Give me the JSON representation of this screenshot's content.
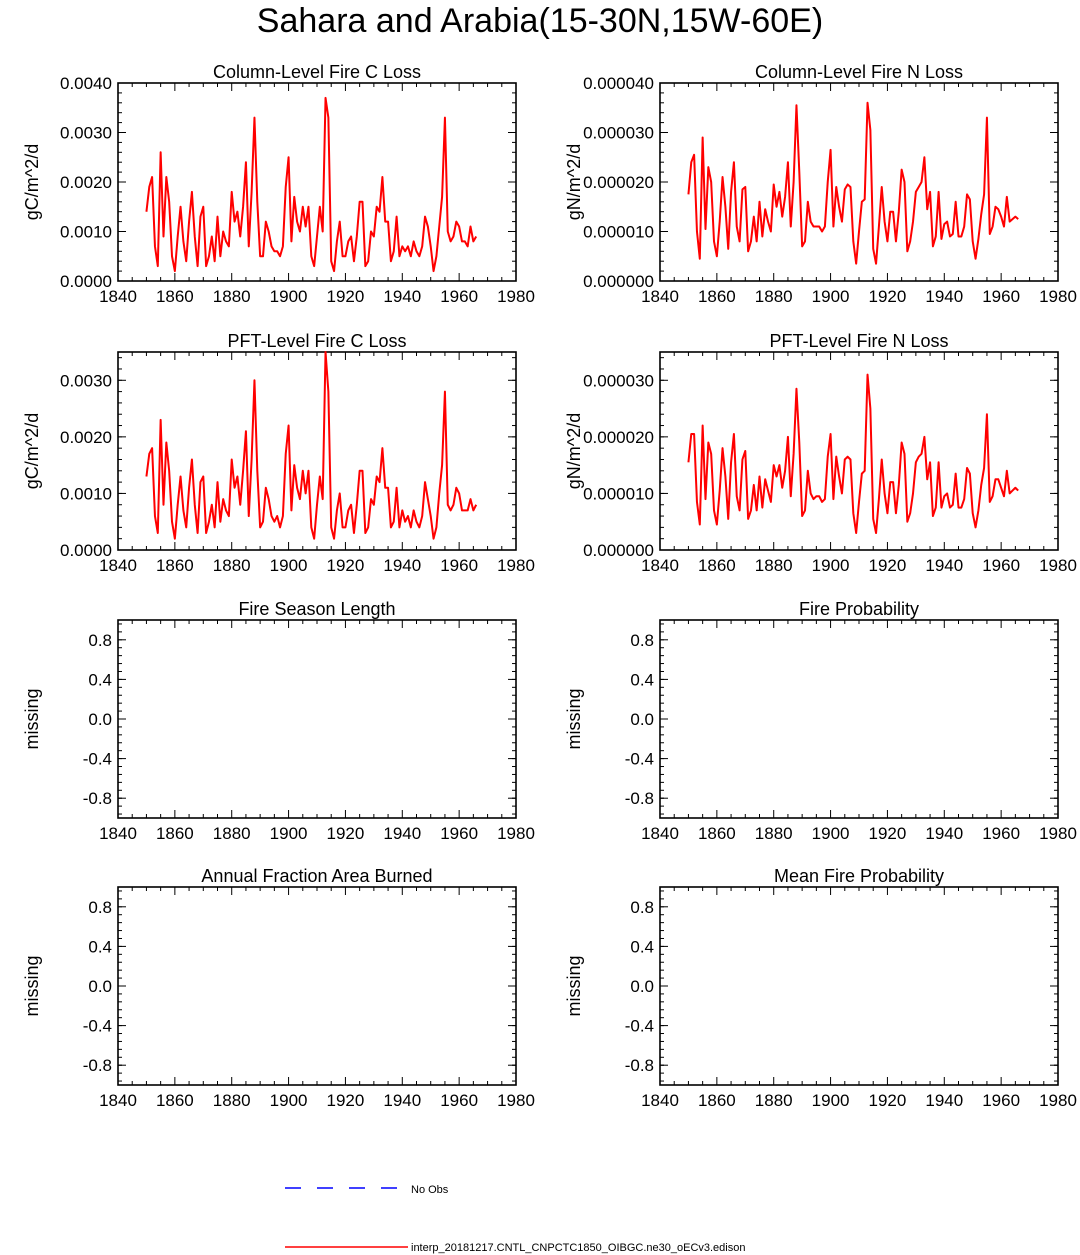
{
  "title": "Sahara and Arabia(15-30N,15W-60E)",
  "colors": {
    "model_line": "#ff0000",
    "obs_line": "#0000ff",
    "axis": "#000000"
  },
  "legend": {
    "obs_label": "No Obs",
    "model_label": "interp_20181217.CNTL_CNPCTC1850_OIBGC.ne30_oECv3.edison"
  },
  "chart_data": [
    {
      "type": "line",
      "title": "Column-Level Fire C Loss",
      "ylabel": "gC/m^2/d",
      "xlim": [
        1840,
        1980
      ],
      "ylim": [
        0,
        0.004
      ],
      "xticks": [
        1840,
        1860,
        1880,
        1900,
        1920,
        1940,
        1960,
        1980
      ],
      "yticks": [
        0,
        0.001,
        0.002,
        0.003,
        0.004
      ],
      "ytick_labels": [
        "0.0000",
        "0.0010",
        "0.0020",
        "0.0030",
        "0.0040"
      ],
      "series": [
        {
          "name": "interp_20181217.CNTL_CNPCTC1850_OIBGC.ne30_oECv3.edison",
          "x_start": 1850,
          "values": [
            0.0014,
            0.0019,
            0.0021,
            0.0007,
            0.0003,
            0.0026,
            0.0009,
            0.0021,
            0.0016,
            0.0005,
            0.0002,
            0.0009,
            0.0015,
            0.0008,
            0.0004,
            0.0012,
            0.0018,
            0.0009,
            0.0003,
            0.0013,
            0.0015,
            0.0003,
            0.0005,
            0.0009,
            0.0004,
            0.0013,
            0.0005,
            0.001,
            0.0008,
            0.0007,
            0.0018,
            0.0012,
            0.0014,
            0.0009,
            0.0015,
            0.0024,
            0.0007,
            0.0018,
            0.0033,
            0.0016,
            0.0005,
            0.0005,
            0.0012,
            0.001,
            0.0007,
            0.0006,
            0.0006,
            0.0005,
            0.0007,
            0.0019,
            0.0025,
            0.0008,
            0.0017,
            0.0012,
            0.001,
            0.0015,
            0.0011,
            0.0015,
            0.0005,
            0.0003,
            0.0009,
            0.0015,
            0.001,
            0.0037,
            0.0033,
            0.0004,
            0.0002,
            0.0008,
            0.0012,
            0.0005,
            0.0005,
            0.0008,
            0.0009,
            0.0004,
            0.0009,
            0.0016,
            0.0016,
            0.0003,
            0.0004,
            0.001,
            0.0009,
            0.0015,
            0.0014,
            0.0021,
            0.0012,
            0.0012,
            0.0004,
            0.0006,
            0.0013,
            0.0005,
            0.0007,
            0.0006,
            0.0007,
            0.0005,
            0.0008,
            0.0006,
            0.0005,
            0.0007,
            0.0013,
            0.0011,
            0.0007,
            0.0002,
            0.0005,
            0.0011,
            0.0017,
            0.0033,
            0.001,
            0.0008,
            0.0009,
            0.0012,
            0.0011,
            0.0008,
            0.0008,
            0.0007,
            0.0011,
            0.0008,
            0.0009
          ]
        }
      ]
    },
    {
      "type": "line",
      "title": "Column-Level Fire N Loss",
      "ylabel": "gN/m^2/d",
      "xlim": [
        1840,
        1980
      ],
      "ylim": [
        0,
        4e-05
      ],
      "xticks": [
        1840,
        1860,
        1880,
        1900,
        1920,
        1940,
        1960,
        1980
      ],
      "yticks": [
        0,
        1e-05,
        2e-05,
        3e-05,
        4e-05
      ],
      "ytick_labels": [
        "0.000000",
        "0.000010",
        "0.000020",
        "0.000030",
        "0.000040"
      ],
      "series": [
        {
          "name": "interp_20181217.CNTL_CNPCTC1850_OIBGC.ne30_oECv3.edison",
          "x_start": 1850,
          "values": [
            1.75e-05,
            2.4e-05,
            2.55e-05,
            1e-05,
            4.5e-06,
            2.9e-05,
            1.05e-05,
            2.3e-05,
            2e-05,
            8e-06,
            5e-06,
            1.2e-05,
            2.1e-05,
            1.5e-05,
            6.5e-06,
            1.8e-05,
            2.4e-05,
            1.1e-05,
            8e-06,
            1.85e-05,
            1.9e-05,
            6e-06,
            8e-06,
            1.3e-05,
            8e-06,
            1.6e-05,
            9e-06,
            1.45e-05,
            1.2e-05,
            1e-05,
            1.95e-05,
            1.5e-05,
            1.8e-05,
            1.3e-05,
            1.7e-05,
            2.4e-05,
            1.1e-05,
            2e-05,
            3.55e-05,
            2.2e-05,
            7e-06,
            8e-06,
            1.6e-05,
            1.2e-05,
            1.1e-05,
            1.1e-05,
            1.1e-05,
            1e-05,
            1.1e-05,
            2e-05,
            2.65e-05,
            1.1e-05,
            1.9e-05,
            1.5e-05,
            1.2e-05,
            1.85e-05,
            1.95e-05,
            1.9e-05,
            8e-06,
            3.5e-06,
            1e-05,
            1.6e-05,
            1.65e-05,
            3.6e-05,
            3.05e-05,
            6.5e-06,
            3.5e-06,
            1.1e-05,
            1.9e-05,
            1.2e-05,
            8e-06,
            1.4e-05,
            1.4e-05,
            8e-06,
            1.4e-05,
            2.25e-05,
            2e-05,
            6e-06,
            8e-06,
            1.2e-05,
            1.8e-05,
            1.9e-05,
            2e-05,
            2.5e-05,
            1.45e-05,
            1.8e-05,
            7e-06,
            9e-06,
            1.8e-05,
            8.5e-06,
            1.15e-05,
            1.2e-05,
            9e-06,
            9.5e-06,
            1.6e-05,
            9e-06,
            9e-06,
            1.1e-05,
            1.75e-05,
            1.65e-05,
            8e-06,
            4.5e-06,
            8.5e-06,
            1.35e-05,
            1.75e-05,
            3.3e-05,
            9.5e-06,
            1.1e-05,
            1.5e-05,
            1.45e-05,
            1.3e-05,
            1.1e-05,
            1.7e-05,
            1.2e-05,
            1.25e-05,
            1.3e-05,
            1.25e-05
          ]
        }
      ]
    },
    {
      "type": "line",
      "title": "PFT-Level Fire C Loss",
      "ylabel": "gC/m^2/d",
      "xlim": [
        1840,
        1980
      ],
      "ylim": [
        0,
        0.0035
      ],
      "xticks": [
        1840,
        1860,
        1880,
        1900,
        1920,
        1940,
        1960,
        1980
      ],
      "yticks": [
        0,
        0.001,
        0.002,
        0.003
      ],
      "ytick_labels": [
        "0.0000",
        "0.0010",
        "0.0020",
        "0.0030"
      ],
      "series": [
        {
          "name": "interp_20181217.CNTL_CNPCTC1850_OIBGC.ne30_oECv3.edison",
          "x_start": 1850,
          "values": [
            0.0013,
            0.0017,
            0.0018,
            0.0006,
            0.0003,
            0.0023,
            0.0008,
            0.0019,
            0.0014,
            0.0005,
            0.0002,
            0.0008,
            0.0013,
            0.0007,
            0.0004,
            0.0011,
            0.0016,
            0.0008,
            0.0003,
            0.0012,
            0.0013,
            0.0003,
            0.0005,
            0.0008,
            0.0004,
            0.0012,
            0.0005,
            0.0009,
            0.0007,
            0.0006,
            0.0016,
            0.0011,
            0.0013,
            0.0008,
            0.0014,
            0.0021,
            0.0006,
            0.0016,
            0.003,
            0.0014,
            0.0004,
            0.0005,
            0.0011,
            0.0009,
            0.0006,
            0.0005,
            0.0006,
            0.0004,
            0.0006,
            0.0017,
            0.0022,
            0.0007,
            0.0015,
            0.0011,
            0.0009,
            0.0014,
            0.001,
            0.0014,
            0.0004,
            0.0002,
            0.0008,
            0.0013,
            0.0009,
            0.0035,
            0.0028,
            0.0004,
            0.0002,
            0.0007,
            0.001,
            0.0004,
            0.0004,
            0.0007,
            0.0008,
            0.0003,
            0.0008,
            0.0014,
            0.0014,
            0.0003,
            0.0004,
            0.0009,
            0.0008,
            0.0013,
            0.0012,
            0.0018,
            0.0011,
            0.0011,
            0.0004,
            0.0005,
            0.0011,
            0.0004,
            0.0007,
            0.0005,
            0.0006,
            0.0004,
            0.0007,
            0.0005,
            0.0004,
            0.0006,
            0.0012,
            0.0009,
            0.0006,
            0.0002,
            0.0004,
            0.001,
            0.0015,
            0.0028,
            0.0008,
            0.0007,
            0.0008,
            0.0011,
            0.001,
            0.0007,
            0.0007,
            0.0007,
            0.0009,
            0.0007,
            0.0008
          ]
        }
      ]
    },
    {
      "type": "line",
      "title": "PFT-Level Fire N Loss",
      "ylabel": "gN/m^2/d",
      "xlim": [
        1840,
        1980
      ],
      "ylim": [
        0,
        3.5e-05
      ],
      "xticks": [
        1840,
        1860,
        1880,
        1900,
        1920,
        1940,
        1960,
        1980
      ],
      "yticks": [
        0,
        1e-05,
        2e-05,
        3e-05
      ],
      "ytick_labels": [
        "0.000000",
        "0.000010",
        "0.000020",
        "0.000030"
      ],
      "series": [
        {
          "name": "interp_20181217.CNTL_CNPCTC1850_OIBGC.ne30_oECv3.edison",
          "x_start": 1850,
          "values": [
            1.55e-05,
            2.05e-05,
            2.05e-05,
            8.5e-06,
            4.5e-06,
            2.2e-05,
            9e-06,
            1.9e-05,
            1.7e-05,
            7e-06,
            4.5e-06,
            1.05e-05,
            1.8e-05,
            1.3e-05,
            5.5e-06,
            1.55e-05,
            2.05e-05,
            9.5e-06,
            7e-06,
            1.6e-05,
            1.75e-05,
            5.5e-06,
            7e-06,
            1.15e-05,
            7e-06,
            1.3e-05,
            7.5e-06,
            1.25e-05,
            1.05e-05,
            8.5e-06,
            1.5e-05,
            1.3e-05,
            1.5e-05,
            1.1e-05,
            1.4e-05,
            2e-05,
            9.5e-06,
            1.7e-05,
            2.85e-05,
            1.9e-05,
            6e-06,
            7e-06,
            1.4e-05,
            1e-05,
            9e-06,
            9.5e-06,
            9.5e-06,
            8.5e-06,
            9e-06,
            1.65e-05,
            2.05e-05,
            9e-06,
            1.65e-05,
            1.3e-05,
            1e-05,
            1.6e-05,
            1.65e-05,
            1.6e-05,
            6.5e-06,
            3e-06,
            8.5e-06,
            1.35e-05,
            1.4e-05,
            3.1e-05,
            2.5e-05,
            5.5e-06,
            3e-06,
            9e-06,
            1.6e-05,
            1e-05,
            6.5e-06,
            1.2e-05,
            1.2e-05,
            6.5e-06,
            1.15e-05,
            1.9e-05,
            1.7e-05,
            5e-06,
            6.5e-06,
            1e-05,
            1.55e-05,
            1.65e-05,
            1.7e-05,
            2e-05,
            1.25e-05,
            1.55e-05,
            6e-06,
            7.5e-06,
            1.55e-05,
            7.5e-06,
            9.5e-06,
            1e-05,
            7.5e-06,
            8e-06,
            1.35e-05,
            7.5e-06,
            7.5e-06,
            9e-06,
            1.45e-05,
            1.35e-05,
            6.5e-06,
            4e-06,
            7e-06,
            1.15e-05,
            1.45e-05,
            2.4e-05,
            8.5e-06,
            9.5e-06,
            1.25e-05,
            1.25e-05,
            1.1e-05,
            9.5e-06,
            1.4e-05,
            1e-05,
            1.05e-05,
            1.1e-05,
            1.05e-05
          ]
        }
      ]
    },
    {
      "type": "line",
      "title": "Fire Season Length",
      "ylabel": "missing",
      "xlim": [
        1840,
        1980
      ],
      "ylim": [
        -1,
        1
      ],
      "xticks": [
        1840,
        1860,
        1880,
        1900,
        1920,
        1940,
        1960,
        1980
      ],
      "yticks": [
        -0.8,
        -0.4,
        0,
        0.4,
        0.8
      ],
      "ytick_labels": [
        "-0.8",
        "-0.4",
        "0.0",
        "0.4",
        "0.8"
      ],
      "series": []
    },
    {
      "type": "line",
      "title": "Fire Probability",
      "ylabel": "missing",
      "xlim": [
        1840,
        1980
      ],
      "ylim": [
        -1,
        1
      ],
      "xticks": [
        1840,
        1860,
        1880,
        1900,
        1920,
        1940,
        1960,
        1980
      ],
      "yticks": [
        -0.8,
        -0.4,
        0,
        0.4,
        0.8
      ],
      "ytick_labels": [
        "-0.8",
        "-0.4",
        "0.0",
        "0.4",
        "0.8"
      ],
      "series": []
    },
    {
      "type": "line",
      "title": "Annual Fraction Area Burned",
      "ylabel": "missing",
      "xlim": [
        1840,
        1980
      ],
      "ylim": [
        -1,
        1
      ],
      "xticks": [
        1840,
        1860,
        1880,
        1900,
        1920,
        1940,
        1960,
        1980
      ],
      "yticks": [
        -0.8,
        -0.4,
        0,
        0.4,
        0.8
      ],
      "ytick_labels": [
        "-0.8",
        "-0.4",
        "0.0",
        "0.4",
        "0.8"
      ],
      "series": []
    },
    {
      "type": "line",
      "title": "Mean Fire Probability",
      "ylabel": "missing",
      "xlim": [
        1840,
        1980
      ],
      "ylim": [
        -1,
        1
      ],
      "xticks": [
        1840,
        1860,
        1880,
        1900,
        1920,
        1940,
        1960,
        1980
      ],
      "yticks": [
        -0.8,
        -0.4,
        0,
        0.4,
        0.8
      ],
      "ytick_labels": [
        "-0.8",
        "-0.4",
        "0.0",
        "0.4",
        "0.8"
      ],
      "series": []
    }
  ]
}
